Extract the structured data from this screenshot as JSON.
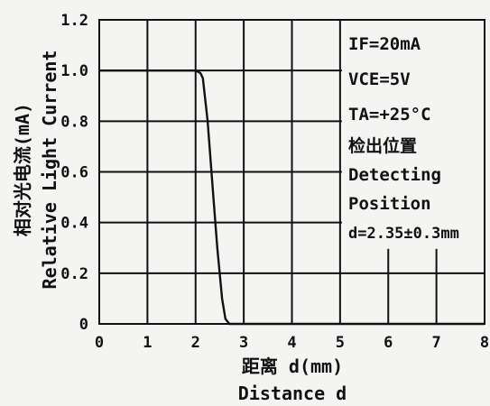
{
  "chart_data": {
    "type": "line",
    "xlabel_cn": "距离 d(mm)",
    "xlabel_en": "Distance d",
    "ylabel_cn": "相对光电流(mA)",
    "ylabel_en": "Relative Light Current",
    "xlim": [
      0,
      8
    ],
    "ylim": [
      0,
      1.2
    ],
    "x_ticks": [
      "0",
      "1",
      "2",
      "3",
      "4",
      "5",
      "6",
      "7",
      "8"
    ],
    "y_ticks": [
      {
        "value": 0,
        "label": "0"
      },
      {
        "value": 0.2,
        "label": "0.2"
      },
      {
        "value": 0.4,
        "label": "0.4"
      },
      {
        "value": 0.6,
        "label": "0.6"
      },
      {
        "value": 0.8,
        "label": "0.8"
      },
      {
        "value": 1.0,
        "label": "1.0"
      },
      {
        "value": 1.2,
        "label": "1.2"
      }
    ],
    "grid": true,
    "series": [
      {
        "x": [
          0,
          2.0,
          2.1,
          2.15,
          2.25,
          2.35,
          2.45,
          2.55,
          2.62,
          2.7,
          2.8,
          3.0,
          8.0
        ],
        "y": [
          1.0,
          1.0,
          0.99,
          0.97,
          0.8,
          0.55,
          0.3,
          0.1,
          0.02,
          0.0,
          0.0,
          0.0,
          0.0
        ]
      }
    ],
    "annotations": [
      "IF=20mA",
      "VCE=5V",
      "TA=+25°C",
      "检出位置",
      "Detecting",
      "Position",
      "d=2.35±0.3mm"
    ]
  }
}
